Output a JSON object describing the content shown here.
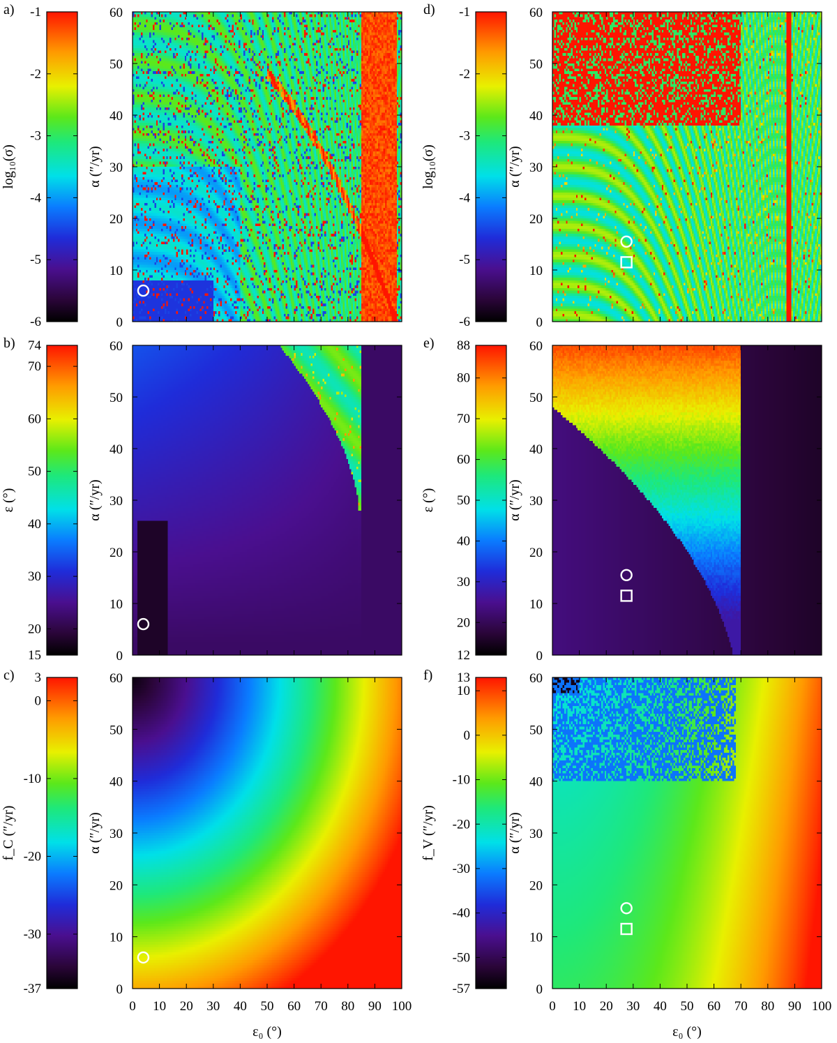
{
  "figure": {
    "x_label": "ε₀ (°)",
    "x_ticks": [
      0,
      10,
      20,
      30,
      40,
      50,
      60,
      70,
      80,
      90,
      100
    ]
  },
  "chart_data": [
    {
      "type": "heatmap",
      "panel": "a)",
      "xlabel": "ε₀ (°)",
      "ylabel": "α (″/yr)",
      "xlim": [
        0,
        100
      ],
      "ylim": [
        0,
        60
      ],
      "y_ticks": [
        0,
        10,
        20,
        30,
        40,
        50,
        60
      ],
      "colorbar": {
        "label": "log₁₀(σ)",
        "range": [
          -6,
          -1
        ],
        "ticks": [
          -6,
          -5,
          -4,
          -3,
          -2,
          -1
        ],
        "palette": "rainbow"
      },
      "markers": [
        {
          "shape": "circle",
          "x": 4,
          "y": 6
        }
      ]
    },
    {
      "type": "heatmap",
      "panel": "b)",
      "xlabel": "ε₀ (°)",
      "ylabel": "α (″/yr)",
      "xlim": [
        0,
        100
      ],
      "ylim": [
        0,
        60
      ],
      "y_ticks": [
        0,
        10,
        20,
        30,
        40,
        50,
        60
      ],
      "colorbar": {
        "label": "ε (°)",
        "range": [
          15,
          74
        ],
        "ticks": [
          15,
          20,
          30,
          40,
          50,
          60,
          70,
          74
        ],
        "palette": "rainbow"
      },
      "markers": [
        {
          "shape": "circle",
          "x": 4,
          "y": 6
        }
      ]
    },
    {
      "type": "heatmap",
      "panel": "c)",
      "xlabel": "ε₀ (°)",
      "ylabel": "α (″/yr)",
      "xlim": [
        0,
        100
      ],
      "ylim": [
        0,
        60
      ],
      "y_ticks": [
        0,
        10,
        20,
        30,
        40,
        50,
        60
      ],
      "colorbar": {
        "label": "f_C (″/yr)",
        "range": [
          -37,
          3
        ],
        "ticks": [
          -37,
          -30,
          -20,
          -10,
          0,
          3
        ],
        "palette": "rainbow"
      },
      "markers": [
        {
          "shape": "circle",
          "x": 4,
          "y": 6
        }
      ]
    },
    {
      "type": "heatmap",
      "panel": "d)",
      "xlabel": "ε₀ (°)",
      "ylabel": "α (″/yr)",
      "xlim": [
        0,
        100
      ],
      "ylim": [
        0,
        60
      ],
      "y_ticks": [
        0,
        10,
        20,
        30,
        40,
        50,
        60
      ],
      "colorbar": {
        "label": "log₁₀(σ)",
        "range": [
          -6,
          -1
        ],
        "ticks": [
          -6,
          -5,
          -4,
          -3,
          -2,
          -1
        ],
        "palette": "rainbow"
      },
      "markers": [
        {
          "shape": "circle",
          "x": 27.5,
          "y": 15.5
        },
        {
          "shape": "square",
          "x": 27.5,
          "y": 11.5
        }
      ]
    },
    {
      "type": "heatmap",
      "panel": "e)",
      "xlabel": "ε₀ (°)",
      "ylabel": "α (″/yr)",
      "xlim": [
        0,
        100
      ],
      "ylim": [
        0,
        60
      ],
      "y_ticks": [
        0,
        10,
        20,
        30,
        40,
        50,
        60
      ],
      "colorbar": {
        "label": "ε (°)",
        "range": [
          12,
          88
        ],
        "ticks": [
          12,
          20,
          30,
          40,
          50,
          60,
          70,
          80,
          88
        ],
        "palette": "rainbow"
      },
      "markers": [
        {
          "shape": "circle",
          "x": 27.5,
          "y": 15.5
        },
        {
          "shape": "square",
          "x": 27.5,
          "y": 11.5
        }
      ]
    },
    {
      "type": "heatmap",
      "panel": "f)",
      "xlabel": "ε₀ (°)",
      "ylabel": "α (″/yr)",
      "xlim": [
        0,
        100
      ],
      "ylim": [
        0,
        60
      ],
      "y_ticks": [
        0,
        10,
        20,
        30,
        40,
        50,
        60
      ],
      "colorbar": {
        "label": "f_V (″/yr)",
        "range": [
          -57,
          13
        ],
        "ticks": [
          -57,
          -50,
          -40,
          -30,
          -20,
          -10,
          0,
          10,
          13
        ],
        "palette": "rainbow"
      },
      "markers": [
        {
          "shape": "circle",
          "x": 27.5,
          "y": 15.5
        },
        {
          "shape": "square",
          "x": 27.5,
          "y": 11.5
        }
      ]
    }
  ]
}
